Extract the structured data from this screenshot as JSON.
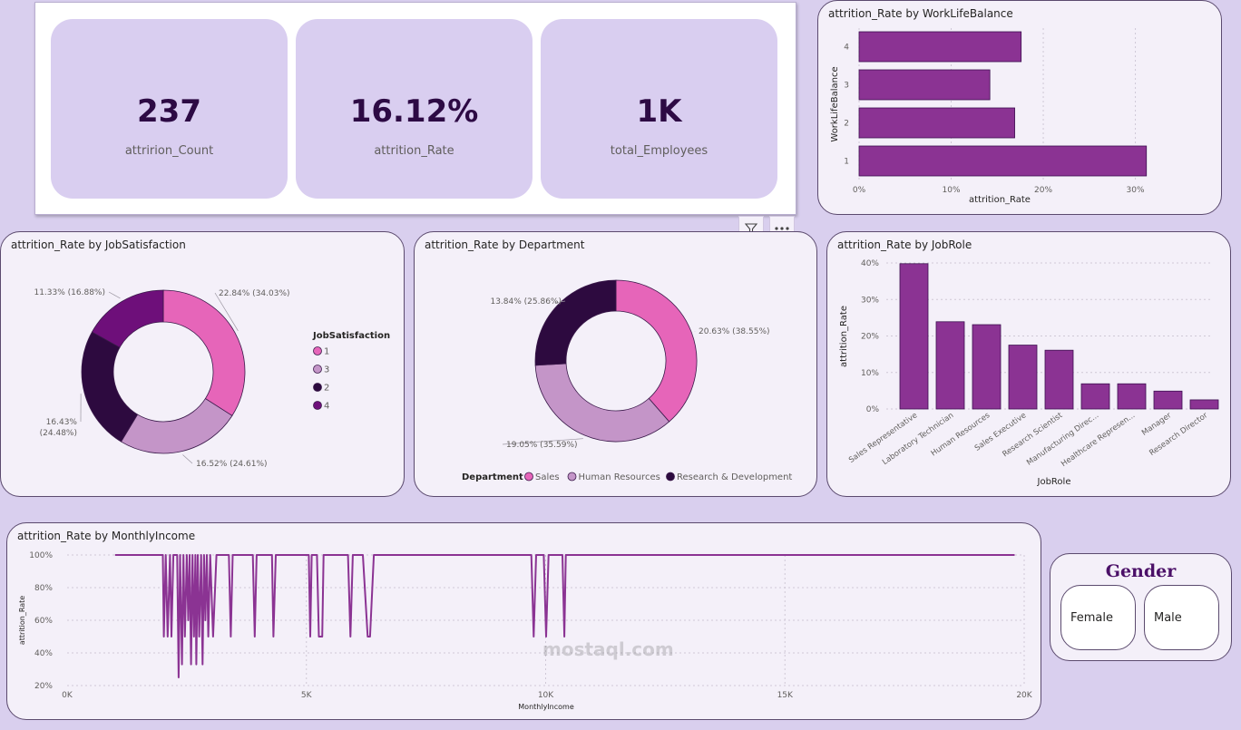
{
  "kpis": [
    {
      "value": "237",
      "label": "attririon_Count"
    },
    {
      "value": "16.12%",
      "label": "attrition_Rate"
    },
    {
      "value": "1K",
      "label": "total_Employees"
    }
  ],
  "toolbar": {
    "filter_icon": "filter-icon",
    "more_icon": "more-options-icon"
  },
  "gender": {
    "title": "Gender",
    "options": [
      "Female",
      "Male"
    ]
  },
  "watermark": "mostaql.com",
  "colors": {
    "purple": "#8b3393",
    "pink": "#e665b9",
    "lavender": "#c495c8",
    "dark": "#2d0a3f",
    "violet": "#6e0f7a"
  },
  "chart_data": [
    {
      "id": "wlb",
      "type": "bar",
      "orientation": "horizontal",
      "title": "attrition_Rate by WorkLifeBalance",
      "xlabel": "attrition_Rate",
      "ylabel": "WorkLifeBalance",
      "categories": [
        "4",
        "3",
        "2",
        "1"
      ],
      "values": [
        17.6,
        14.2,
        16.9,
        31.2
      ],
      "xlim": [
        0,
        33
      ],
      "xticks": [
        "0%",
        "10%",
        "20%",
        "30%"
      ]
    },
    {
      "id": "jobsat",
      "type": "pie",
      "style": "donut",
      "title": "attrition_Rate by JobSatisfaction",
      "legend_title": "JobSatisfaction",
      "legend_position": "right",
      "legend": [
        "1",
        "3",
        "2",
        "4"
      ],
      "slices": [
        {
          "name": "1",
          "value": 22.84,
          "label": "22.84% (34.03%)",
          "share": 34.03
        },
        {
          "name": "3",
          "value": 16.52,
          "label": "16.52% (24.61%)",
          "share": 24.61
        },
        {
          "name": "2",
          "value": 16.43,
          "label": "16.43% (24.48%)",
          "share": 24.48
        },
        {
          "name": "4",
          "value": 11.33,
          "label": "11.33% (16.88%)",
          "share": 16.88
        }
      ]
    },
    {
      "id": "dept",
      "type": "pie",
      "style": "donut",
      "title": "attrition_Rate by Department",
      "legend_title": "Department",
      "legend_position": "bottom",
      "legend": [
        "Sales",
        "Human Resources",
        "Research & Development"
      ],
      "slices": [
        {
          "name": "Sales",
          "value": 20.63,
          "label": "20.63% (38.55%)",
          "share": 38.55
        },
        {
          "name": "Human Resources",
          "value": 19.05,
          "label": "19.05% (35.59%)",
          "share": 35.59
        },
        {
          "name": "Research & Development",
          "value": 13.84,
          "label": "13.84% (25.86%)",
          "share": 25.86
        }
      ]
    },
    {
      "id": "jobrole",
      "type": "bar",
      "title": "attrition_Rate by JobRole",
      "xlabel": "JobRole",
      "ylabel": "attrition_Rate",
      "categories": [
        "Sales Representative",
        "Laboratory Technician",
        "Human Resources",
        "Sales Executive",
        "Research Scientist",
        "Manufacturing Direc...",
        "Healthcare Represen...",
        "Manager",
        "Research Director"
      ],
      "values": [
        39.8,
        23.9,
        23.1,
        17.5,
        16.1,
        6.9,
        6.9,
        4.9,
        2.5
      ],
      "ylim": [
        0,
        40
      ],
      "yticks": [
        "0%",
        "10%",
        "20%",
        "30%",
        "40%"
      ]
    },
    {
      "id": "income",
      "type": "line",
      "title": "attrition_Rate by MonthlyIncome",
      "xlabel": "MonthlyIncome",
      "ylabel": "attrition_Rate",
      "xlim": [
        0,
        20000
      ],
      "ylim": [
        20,
        100
      ],
      "xticks": [
        "0K",
        "5K",
        "10K",
        "15K",
        "20K"
      ],
      "xtick_values": [
        0,
        5000,
        10000,
        15000,
        20000
      ],
      "yticks": [
        "100%",
        "80%",
        "60%",
        "40%",
        "20%"
      ],
      "ytick_values": [
        100,
        80,
        60,
        40,
        20
      ],
      "series": [
        {
          "points": [
            [
              1000,
              100
            ],
            [
              2000,
              100
            ],
            [
              2020,
              50
            ],
            [
              2060,
              100
            ],
            [
              2100,
              50
            ],
            [
              2150,
              100
            ],
            [
              2180,
              50
            ],
            [
              2220,
              100
            ],
            [
              2300,
              100
            ],
            [
              2330,
              25
            ],
            [
              2360,
              100
            ],
            [
              2400,
              33
            ],
            [
              2430,
              100
            ],
            [
              2460,
              50
            ],
            [
              2500,
              100
            ],
            [
              2530,
              60
            ],
            [
              2560,
              100
            ],
            [
              2590,
              33
            ],
            [
              2620,
              100
            ],
            [
              2650,
              50
            ],
            [
              2680,
              100
            ],
            [
              2700,
              33
            ],
            [
              2730,
              100
            ],
            [
              2760,
              50
            ],
            [
              2800,
              100
            ],
            [
              2830,
              33
            ],
            [
              2860,
              100
            ],
            [
              2890,
              60
            ],
            [
              2920,
              100
            ],
            [
              2950,
              50
            ],
            [
              2990,
              100
            ],
            [
              3050,
              50
            ],
            [
              3120,
              100
            ],
            [
              3380,
              100
            ],
            [
              3420,
              50
            ],
            [
              3460,
              100
            ],
            [
              3880,
              100
            ],
            [
              3920,
              50
            ],
            [
              3960,
              100
            ],
            [
              4280,
              100
            ],
            [
              4310,
              50
            ],
            [
              4360,
              100
            ],
            [
              5050,
              100
            ],
            [
              5080,
              50
            ],
            [
              5110,
              100
            ],
            [
              5220,
              100
            ],
            [
              5260,
              50
            ],
            [
              5330,
              50
            ],
            [
              5360,
              100
            ],
            [
              5870,
              100
            ],
            [
              5920,
              50
            ],
            [
              5970,
              100
            ],
            [
              6180,
              100
            ],
            [
              6280,
              50
            ],
            [
              6330,
              50
            ],
            [
              6410,
              100
            ],
            [
              9700,
              100
            ],
            [
              9750,
              50
            ],
            [
              9800,
              100
            ],
            [
              9960,
              100
            ],
            [
              10010,
              50
            ],
            [
              10060,
              100
            ],
            [
              10350,
              100
            ],
            [
              10390,
              50
            ],
            [
              10420,
              100
            ],
            [
              19800,
              100
            ]
          ]
        }
      ]
    }
  ]
}
